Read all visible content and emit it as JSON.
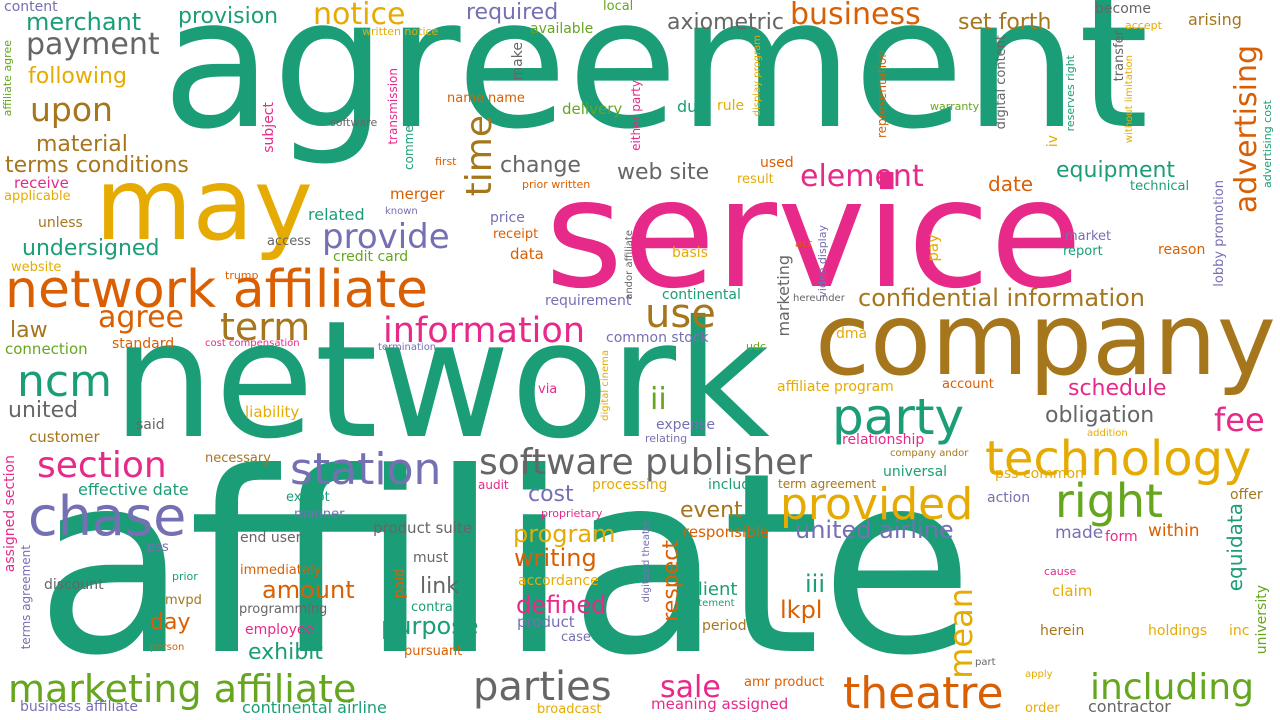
{
  "palette": {
    "green": "#1b9e77",
    "pink": "#e7298a",
    "orange": "#d95f02",
    "brown": "#a6761d",
    "gold": "#e6ab02",
    "lime": "#66a61e",
    "purple": "#7570b3",
    "gray": "#666666"
  },
  "words": [
    {
      "text": "agreement",
      "color": "green"
    },
    {
      "text": "affiliate",
      "color": "green"
    },
    {
      "text": "network",
      "color": "green"
    },
    {
      "text": "service",
      "color": "pink"
    },
    {
      "text": "company",
      "color": "brown"
    },
    {
      "text": "may",
      "color": "gold"
    },
    {
      "text": "network affiliate",
      "color": "orange"
    },
    {
      "text": "chase",
      "color": "purple"
    },
    {
      "text": "ncm",
      "color": "green"
    },
    {
      "text": "technology",
      "color": "gold"
    },
    {
      "text": "party",
      "color": "green"
    },
    {
      "text": "right",
      "color": "lime"
    },
    {
      "text": "theatre",
      "color": "orange"
    },
    {
      "text": "software publisher",
      "color": "gray"
    },
    {
      "text": "station",
      "color": "purple"
    },
    {
      "text": "provided",
      "color": "gold"
    },
    {
      "text": "parties",
      "color": "gray"
    },
    {
      "text": "marketing affiliate",
      "color": "lime"
    },
    {
      "text": "including",
      "color": "lime"
    },
    {
      "text": "information",
      "color": "pink"
    },
    {
      "text": "section",
      "color": "pink"
    },
    {
      "text": "term",
      "color": "brown"
    },
    {
      "text": "use",
      "color": "brown"
    },
    {
      "text": "provide",
      "color": "purple"
    },
    {
      "text": "element",
      "color": "pink"
    },
    {
      "text": "notice",
      "color": "gold"
    },
    {
      "text": "business",
      "color": "orange"
    },
    {
      "text": "payment",
      "color": "gray"
    },
    {
      "text": "upon",
      "color": "brown"
    },
    {
      "text": "agree",
      "color": "orange"
    },
    {
      "text": "time",
      "color": "brown"
    },
    {
      "text": "confidential information",
      "color": "brown"
    },
    {
      "text": "advertising",
      "color": "orange"
    },
    {
      "text": "mean",
      "color": "gold"
    },
    {
      "text": "fee",
      "color": "pink"
    },
    {
      "text": "program",
      "color": "gold"
    },
    {
      "text": "writing",
      "color": "orange"
    },
    {
      "text": "defined",
      "color": "pink"
    },
    {
      "text": "event",
      "color": "brown"
    },
    {
      "text": "united airline",
      "color": "purple"
    },
    {
      "text": "sale",
      "color": "pink"
    },
    {
      "text": "amount",
      "color": "orange"
    },
    {
      "text": "purpose",
      "color": "green"
    },
    {
      "text": "exhibit",
      "color": "green"
    },
    {
      "text": "respect",
      "color": "orange"
    },
    {
      "text": "lkpl",
      "color": "orange"
    },
    {
      "text": "merchant",
      "color": "green"
    },
    {
      "text": "provision",
      "color": "green"
    },
    {
      "text": "required",
      "color": "purple"
    },
    {
      "text": "axiometric",
      "color": "gray"
    },
    {
      "text": "set forth",
      "color": "brown"
    },
    {
      "text": "following",
      "color": "gold"
    },
    {
      "text": "material",
      "color": "brown"
    },
    {
      "text": "terms conditions",
      "color": "brown"
    },
    {
      "text": "undersigned",
      "color": "green"
    },
    {
      "text": "change",
      "color": "gray"
    },
    {
      "text": "web site",
      "color": "gray"
    },
    {
      "text": "date",
      "color": "orange"
    },
    {
      "text": "equipment",
      "color": "green"
    },
    {
      "text": "schedule",
      "color": "pink"
    },
    {
      "text": "obligation",
      "color": "gray"
    },
    {
      "text": "united",
      "color": "gray"
    },
    {
      "text": "law",
      "color": "brown"
    },
    {
      "text": "ii",
      "color": "lime"
    },
    {
      "text": "iii",
      "color": "green"
    },
    {
      "text": "cost",
      "color": "purple"
    },
    {
      "text": "link",
      "color": "gray"
    },
    {
      "text": "day",
      "color": "orange"
    },
    {
      "text": "client",
      "color": "green"
    },
    {
      "text": "equidata",
      "color": "green"
    },
    {
      "text": "content",
      "color": "purple"
    },
    {
      "text": "local",
      "color": "lime"
    },
    {
      "text": "become",
      "color": "gray"
    },
    {
      "text": "arising",
      "color": "brown"
    },
    {
      "text": "accept",
      "color": "gold"
    },
    {
      "text": "written notice",
      "color": "gold"
    },
    {
      "text": "available",
      "color": "lime"
    },
    {
      "text": "make",
      "color": "gray"
    },
    {
      "text": "name name",
      "color": "orange"
    },
    {
      "text": "delivery",
      "color": "lime"
    },
    {
      "text": "due",
      "color": "green"
    },
    {
      "text": "rule",
      "color": "gold"
    },
    {
      "text": "warranty",
      "color": "lime"
    },
    {
      "text": "software",
      "color": "gray"
    },
    {
      "text": "subject",
      "color": "pink"
    },
    {
      "text": "receive",
      "color": "pink"
    },
    {
      "text": "applicable",
      "color": "gold"
    },
    {
      "text": "unless",
      "color": "brown"
    },
    {
      "text": "related",
      "color": "green"
    },
    {
      "text": "access",
      "color": "gray"
    },
    {
      "text": "credit card",
      "color": "lime"
    },
    {
      "text": "website",
      "color": "gold"
    },
    {
      "text": "trump",
      "color": "orange"
    },
    {
      "text": "price",
      "color": "purple"
    },
    {
      "text": "receipt",
      "color": "orange"
    },
    {
      "text": "data",
      "color": "orange"
    },
    {
      "text": "basis",
      "color": "gold"
    },
    {
      "text": "merger",
      "color": "orange"
    },
    {
      "text": "used",
      "color": "orange"
    },
    {
      "text": "result",
      "color": "gold"
    },
    {
      "text": "technical",
      "color": "green"
    },
    {
      "text": "first",
      "color": "orange"
    },
    {
      "text": "prior written",
      "color": "orange"
    },
    {
      "text": "known",
      "color": "purple"
    },
    {
      "text": "pay",
      "color": "gold"
    },
    {
      "text": "market",
      "color": "purple"
    },
    {
      "text": "report",
      "color": "green"
    },
    {
      "text": "reason",
      "color": "orange"
    },
    {
      "text": "act",
      "color": "orange"
    },
    {
      "text": "requirement",
      "color": "purple"
    },
    {
      "text": "continental",
      "color": "green"
    },
    {
      "text": "connection",
      "color": "lime"
    },
    {
      "text": "standard",
      "color": "orange"
    },
    {
      "text": "cost compensation",
      "color": "pink"
    },
    {
      "text": "termination",
      "color": "purple"
    },
    {
      "text": "common stock",
      "color": "purple"
    },
    {
      "text": "udc",
      "color": "lime"
    },
    {
      "text": "hereunder",
      "color": "gray"
    },
    {
      "text": "dma",
      "color": "gold"
    },
    {
      "text": "said",
      "color": "gray"
    },
    {
      "text": "customer",
      "color": "brown"
    },
    {
      "text": "liability",
      "color": "gold"
    },
    {
      "text": "via",
      "color": "pink"
    },
    {
      "text": "expense",
      "color": "purple"
    },
    {
      "text": "relating",
      "color": "purple"
    },
    {
      "text": "relationship",
      "color": "pink"
    },
    {
      "text": "affiliate program",
      "color": "gold"
    },
    {
      "text": "account",
      "color": "orange"
    },
    {
      "text": "addition",
      "color": "gold"
    },
    {
      "text": "effective date",
      "color": "green"
    },
    {
      "text": "necessary",
      "color": "brown"
    },
    {
      "text": "audit",
      "color": "pink"
    },
    {
      "text": "processing",
      "color": "gold"
    },
    {
      "text": "include",
      "color": "green"
    },
    {
      "text": "term agreement",
      "color": "brown"
    },
    {
      "text": "universal",
      "color": "green"
    },
    {
      "text": "pss common",
      "color": "gold"
    },
    {
      "text": "company andor",
      "color": "brown"
    },
    {
      "text": "action",
      "color": "purple"
    },
    {
      "text": "offer",
      "color": "brown"
    },
    {
      "text": "except",
      "color": "green"
    },
    {
      "text": "manner",
      "color": "purple"
    },
    {
      "text": "proprietary",
      "color": "pink"
    },
    {
      "text": "product suite",
      "color": "gray"
    },
    {
      "text": "responsible",
      "color": "orange"
    },
    {
      "text": "made",
      "color": "purple"
    },
    {
      "text": "form",
      "color": "pink"
    },
    {
      "text": "within",
      "color": "orange"
    },
    {
      "text": "end user",
      "color": "gray"
    },
    {
      "text": "pss",
      "color": "purple"
    },
    {
      "text": "must",
      "color": "gray"
    },
    {
      "text": "immediately",
      "color": "orange"
    },
    {
      "text": "accordance",
      "color": "gold"
    },
    {
      "text": "discount",
      "color": "gray"
    },
    {
      "text": "prior",
      "color": "green"
    },
    {
      "text": "mvpd",
      "color": "brown"
    },
    {
      "text": "programming",
      "color": "gray"
    },
    {
      "text": "employee",
      "color": "pink"
    },
    {
      "text": "contract",
      "color": "green"
    },
    {
      "text": "product",
      "color": "purple"
    },
    {
      "text": "case",
      "color": "purple"
    },
    {
      "text": "statement",
      "color": "green"
    },
    {
      "text": "period",
      "color": "brown"
    },
    {
      "text": "cause",
      "color": "pink"
    },
    {
      "text": "claim",
      "color": "gold"
    },
    {
      "text": "herein",
      "color": "brown"
    },
    {
      "text": "holdings",
      "color": "gold"
    },
    {
      "text": "inc",
      "color": "gold"
    },
    {
      "text": "person",
      "color": "orange"
    },
    {
      "text": "pursuant",
      "color": "orange"
    },
    {
      "text": "part",
      "color": "gray"
    },
    {
      "text": "apply",
      "color": "gold"
    },
    {
      "text": "amr product",
      "color": "orange"
    },
    {
      "text": "broadcast",
      "color": "gold"
    },
    {
      "text": "meaning assigned",
      "color": "pink"
    },
    {
      "text": "business affiliate",
      "color": "purple"
    },
    {
      "text": "continental airline",
      "color": "green"
    },
    {
      "text": "contractor",
      "color": "gray"
    },
    {
      "text": "order",
      "color": "gold"
    },
    {
      "text": "affiliate agree",
      "color": "lime"
    },
    {
      "text": "transmission",
      "color": "pink"
    },
    {
      "text": "commercial",
      "color": "green"
    },
    {
      "text": "either party",
      "color": "pink"
    },
    {
      "text": "display program",
      "color": "gold"
    },
    {
      "text": "representation",
      "color": "orange"
    },
    {
      "text": "digital content",
      "color": "gray"
    },
    {
      "text": "transfer",
      "color": "gray"
    },
    {
      "text": "reserves right",
      "color": "green"
    },
    {
      "text": "without limitation",
      "color": "gold"
    },
    {
      "text": "advertising cost",
      "color": "green"
    },
    {
      "text": "lobby promotion",
      "color": "purple"
    },
    {
      "text": "video display",
      "color": "purple"
    },
    {
      "text": "andor affiliate",
      "color": "gray"
    },
    {
      "text": "iv",
      "color": "gold"
    },
    {
      "text": "marketing",
      "color": "gray"
    },
    {
      "text": "digital cinema",
      "color": "gold"
    },
    {
      "text": "digitized theatre",
      "color": "purple"
    },
    {
      "text": "paid",
      "color": "orange"
    },
    {
      "text": "university",
      "color": "lime"
    },
    {
      "text": "assigned section",
      "color": "pink"
    },
    {
      "text": "terms agreement",
      "color": "purple"
    }
  ]
}
